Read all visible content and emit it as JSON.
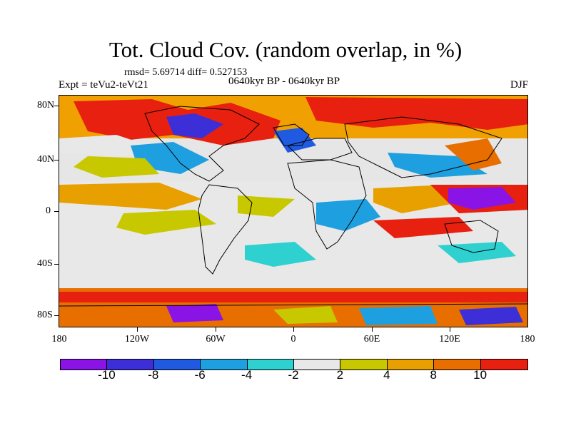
{
  "title": "Tot. Cloud Cov. (random overlap, in %)",
  "rmsd_line": "rmsd= 5.69714 diff= 0.527153",
  "experiment": "Expt = teVu2-teVt21",
  "period": "0640kyr BP - 0640kyr BP",
  "season": "DJF",
  "lat_labels": [
    "80N",
    "40N",
    "0",
    "40S",
    "80S"
  ],
  "lon_labels": [
    "180",
    "120W",
    "60W",
    "0",
    "60E",
    "120E",
    "180"
  ],
  "colorbar": {
    "colors": [
      "#8a14e6",
      "#3c2fd8",
      "#1f5ae0",
      "#1ea0e0",
      "#2fd0d0",
      "#e8e8e8",
      "#c8c800",
      "#e8a000",
      "#e86e00",
      "#e82010"
    ],
    "labels": [
      "-10",
      "-8",
      "-6",
      "-4",
      "-2",
      "2",
      "4",
      "8",
      "10"
    ]
  }
}
